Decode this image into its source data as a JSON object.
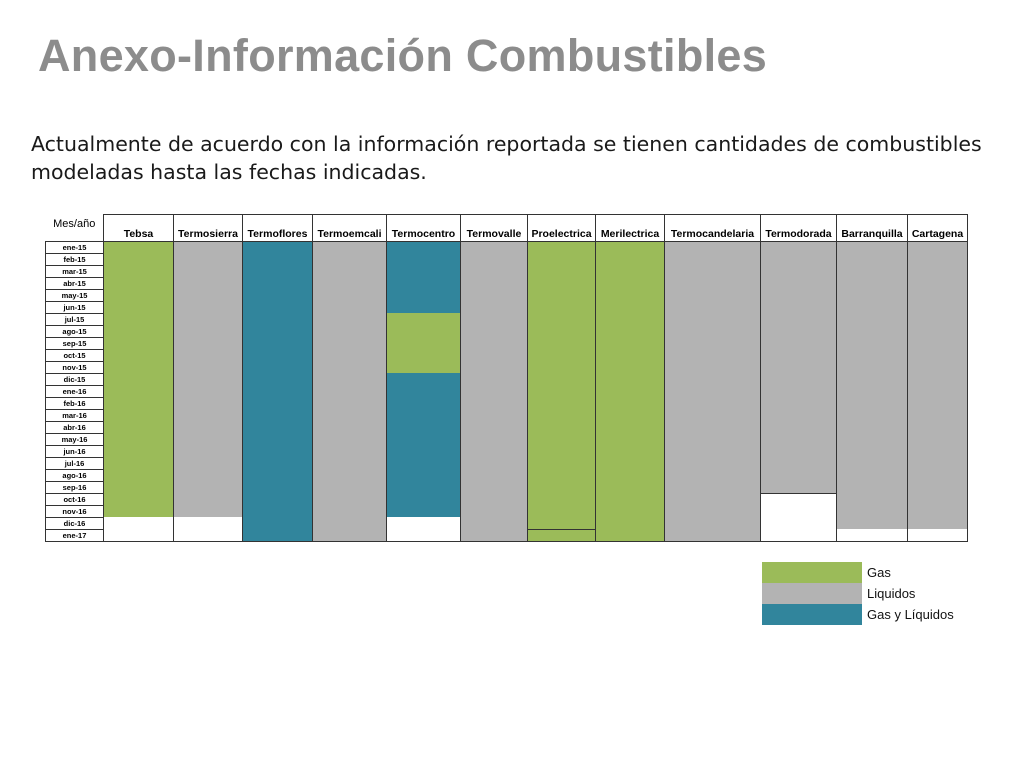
{
  "title": "Anexo-Información Combustibles",
  "subtitle": "Actualmente de acuerdo con la información reportada se tienen cantidades de combustibles modeladas hasta las fechas indicadas.",
  "colors": {
    "gas": "#9bbb59",
    "liquidos": "#b3b3b3",
    "gas_y_liquidos": "#31859c",
    "none": "#ffffff"
  },
  "table": {
    "header_mes": "Mes/año",
    "plants": [
      {
        "name": "Tebsa",
        "segments": [
          {
            "fuel": "gas",
            "months": 23
          },
          {
            "fuel": "none",
            "months": 2
          }
        ]
      },
      {
        "name": "Termosierra",
        "segments": [
          {
            "fuel": "liquidos",
            "months": 23
          },
          {
            "fuel": "none",
            "months": 2
          }
        ]
      },
      {
        "name": "Termoflores",
        "segments": [
          {
            "fuel": "gas_y_liquidos",
            "months": 25
          }
        ]
      },
      {
        "name": "Termoemcali",
        "segments": [
          {
            "fuel": "liquidos",
            "months": 25
          }
        ]
      },
      {
        "name": "Termocentro",
        "segments": [
          {
            "fuel": "gas_y_liquidos",
            "months": 6
          },
          {
            "fuel": "gas",
            "months": 5
          },
          {
            "fuel": "gas_y_liquidos",
            "months": 12
          },
          {
            "fuel": "none",
            "months": 2
          }
        ]
      },
      {
        "name": "Termovalle",
        "segments": [
          {
            "fuel": "liquidos",
            "months": 25
          }
        ]
      },
      {
        "name": "Proelectrica",
        "segments": [
          {
            "fuel": "gas",
            "months": 24
          },
          {
            "fuel": "gas",
            "months": 1,
            "boxed": true
          }
        ]
      },
      {
        "name": "Merilectrica",
        "segments": [
          {
            "fuel": "gas",
            "months": 25
          }
        ]
      },
      {
        "name": "Termocandelaria",
        "segments": [
          {
            "fuel": "liquidos",
            "months": 25
          }
        ]
      },
      {
        "name": "Termodorada",
        "segments": [
          {
            "fuel": "liquidos",
            "months": 21
          },
          {
            "fuel": "none",
            "months": 4,
            "boxed": true
          }
        ]
      },
      {
        "name": "Barranquilla",
        "segments": [
          {
            "fuel": "liquidos",
            "months": 24
          },
          {
            "fuel": "none",
            "months": 1
          }
        ]
      },
      {
        "name": "Cartagena",
        "segments": [
          {
            "fuel": "liquidos",
            "months": 24
          },
          {
            "fuel": "none",
            "months": 1
          }
        ]
      }
    ],
    "months": [
      "ene-15",
      "feb-15",
      "mar-15",
      "abr-15",
      "may-15",
      "jun-15",
      "jul-15",
      "ago-15",
      "sep-15",
      "oct-15",
      "nov-15",
      "dic-15",
      "ene-16",
      "feb-16",
      "mar-16",
      "abr-16",
      "may-16",
      "jun-16",
      "jul-16",
      "ago-16",
      "sep-16",
      "oct-16",
      "nov-16",
      "dic-16",
      "ene-17"
    ]
  },
  "legend": [
    {
      "label": "Gas",
      "color": "#9bbb59"
    },
    {
      "label": "Liquidos",
      "color": "#b3b3b3"
    },
    {
      "label": "Gas y Líquidos",
      "color": "#31859c"
    }
  ]
}
